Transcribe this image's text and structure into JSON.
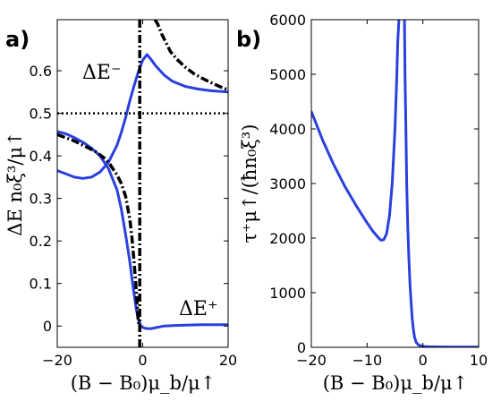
{
  "panel_labels": [
    "a)",
    "b)"
  ],
  "chart_data": [
    {
      "type": "line",
      "panel": "a)",
      "xlabel": "(B − B₀)μ_b/μ↑",
      "ylabel": "ΔE n₀ξ³/μ↑",
      "xlim": [
        -20,
        20
      ],
      "ylim": [
        -0.05,
        0.72
      ],
      "xticks": [
        -20,
        0,
        20
      ],
      "xtick_labels": [
        "−20",
        "0",
        "20"
      ],
      "yticks": [
        0,
        0.1,
        0.2,
        0.3,
        0.4,
        0.5,
        0.6
      ],
      "ytick_labels": [
        "0",
        "0.1",
        "0.2",
        "0.3",
        "0.4",
        "0.5",
        "0.6"
      ],
      "annotations": [
        {
          "text": "ΔE⁻",
          "x": -12.5,
          "y": 0.57
        },
        {
          "text": "ΔE⁺",
          "x": 11,
          "y": 0.02
        }
      ],
      "series": [
        {
          "style": "solid",
          "color": "#2a3fe0",
          "x": [
            -20,
            -18,
            -16,
            -14,
            -12,
            -10,
            -8,
            -6,
            -5,
            -4,
            -3,
            -2,
            -1,
            0,
            1,
            2,
            3,
            5,
            7,
            10,
            13,
            16,
            20
          ],
          "y": [
            0.365,
            0.358,
            0.35,
            0.347,
            0.35,
            0.362,
            0.385,
            0.425,
            0.455,
            0.49,
            0.53,
            0.565,
            0.598,
            0.625,
            0.638,
            0.626,
            0.612,
            0.59,
            0.575,
            0.563,
            0.557,
            0.553,
            0.55
          ]
        },
        {
          "style": "solid",
          "color": "#2a3fe0",
          "x": [
            -20,
            -18,
            -16,
            -14,
            -12,
            -10,
            -8,
            -6,
            -5,
            -4,
            -3,
            -2.5,
            -2,
            -1.5,
            -1,
            -0.5,
            0,
            0.5,
            1,
            1.5,
            2,
            3,
            4,
            5,
            7,
            10,
            14,
            20
          ],
          "y": [
            0.457,
            0.452,
            0.443,
            0.432,
            0.418,
            0.4,
            0.37,
            0.32,
            0.275,
            0.215,
            0.15,
            0.11,
            0.075,
            0.04,
            0.015,
            0.002,
            -0.003,
            -0.005,
            -0.006,
            -0.006,
            -0.006,
            -0.004,
            -0.002,
            0,
            0.001,
            0.002,
            0.003,
            0.003
          ]
        },
        {
          "style": "dashdot",
          "color": "#000000",
          "x": [
            -20,
            -16,
            -13,
            -11,
            -9,
            -8,
            -6,
            -5,
            -4,
            -3,
            -2.5,
            -2,
            -1.6,
            -1.3,
            -1.1,
            -0.95,
            -0.85
          ],
          "y": [
            0.45,
            0.435,
            0.42,
            0.41,
            0.395,
            0.385,
            0.355,
            0.335,
            0.305,
            0.25,
            0.205,
            0.15,
            0.095,
            0.05,
            0.02,
            0.005,
            0
          ]
        },
        {
          "style": "dashdot",
          "color": "#000000",
          "x": [
            -0.7,
            -0.7
          ],
          "y": [
            -0.05,
            0.72
          ]
        },
        {
          "style": "dashdot",
          "color": "#000000",
          "x": [
            2.9,
            3.5,
            4.5,
            5.5,
            6.5,
            8,
            10,
            12,
            14,
            16,
            18,
            20
          ],
          "y": [
            0.72,
            0.71,
            0.685,
            0.665,
            0.645,
            0.627,
            0.608,
            0.593,
            0.582,
            0.572,
            0.563,
            0.555
          ]
        },
        {
          "style": "dotted",
          "color": "#000000",
          "x": [
            -20,
            20
          ],
          "y": [
            0.5,
            0.5
          ]
        }
      ]
    },
    {
      "type": "line",
      "panel": "b)",
      "xlabel": "(B − B₀)μ_b/μ↑",
      "ylabel": "τ⁺μ↑/(ħn₀ξ³)",
      "xlim": [
        -20,
        10
      ],
      "ylim": [
        0,
        6000
      ],
      "xticks": [
        -20,
        -10,
        0,
        10
      ],
      "xtick_labels": [
        "−20",
        "−10",
        "0",
        "10"
      ],
      "yticks": [
        0,
        1000,
        2000,
        3000,
        4000,
        5000,
        6000
      ],
      "ytick_labels": [
        "0",
        "1000",
        "2000",
        "3000",
        "4000",
        "5000",
        "6000"
      ],
      "series": [
        {
          "style": "solid",
          "color": "#2a3fe0",
          "x": [
            -20,
            -18,
            -16,
            -14,
            -12,
            -10,
            -9,
            -8,
            -7.5,
            -7,
            -6.5,
            -6,
            -5.5,
            -5,
            -4.7,
            -4.5,
            -4.3
          ],
          "y": [
            4320,
            3800,
            3350,
            2950,
            2600,
            2280,
            2130,
            2010,
            1960,
            1970,
            2080,
            2400,
            3000,
            4000,
            4900,
            5600,
            6000
          ]
        },
        {
          "style": "solid",
          "color": "#2a3fe0",
          "x": [
            -3.3,
            -3.2,
            -3.05,
            -2.9,
            -2.7,
            -2.5,
            -2.3,
            -2.1,
            -1.9,
            -1.7,
            -1.5,
            -1.2,
            -0.8,
            -0.3,
            0.3,
            1,
            2,
            3,
            5,
            7,
            10
          ],
          "y": [
            6000,
            5000,
            4000,
            3000,
            2200,
            1600,
            1150,
            800,
            520,
            320,
            190,
            90,
            45,
            25,
            15,
            10,
            8,
            6,
            5,
            5,
            5
          ]
        }
      ]
    }
  ]
}
